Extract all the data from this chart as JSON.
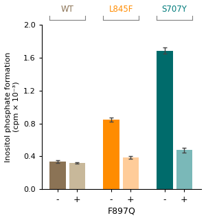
{
  "groups": [
    "WT",
    "L845F",
    "S707Y"
  ],
  "group_label_colors": [
    "#8B7355",
    "#FF8C00",
    "#007B7B"
  ],
  "bar_values": [
    0.335,
    0.32,
    0.845,
    0.385,
    1.685,
    0.475
  ],
  "bar_errors": [
    0.015,
    0.012,
    0.025,
    0.018,
    0.04,
    0.03
  ],
  "bar_colors": [
    "#8B7355",
    "#C8B89A",
    "#FF8C00",
    "#FFCC99",
    "#006B6B",
    "#7AB8B8"
  ],
  "bar_labels": [
    "-",
    "+",
    "-",
    "+",
    "-",
    "+"
  ],
  "ylabel": "Inositol phosphate formation\n(cpm × 10⁻³)",
  "ylim": [
    0,
    2.0
  ],
  "yticks": [
    0.0,
    0.4,
    0.8,
    1.2,
    1.6,
    2.0
  ],
  "xlabel_label": "F897Q",
  "background_color": "#ffffff",
  "bar_width": 0.7,
  "positions": [
    0.5,
    1.35,
    2.85,
    3.7,
    5.2,
    6.05
  ],
  "xlim": [
    -0.2,
    6.8
  ]
}
